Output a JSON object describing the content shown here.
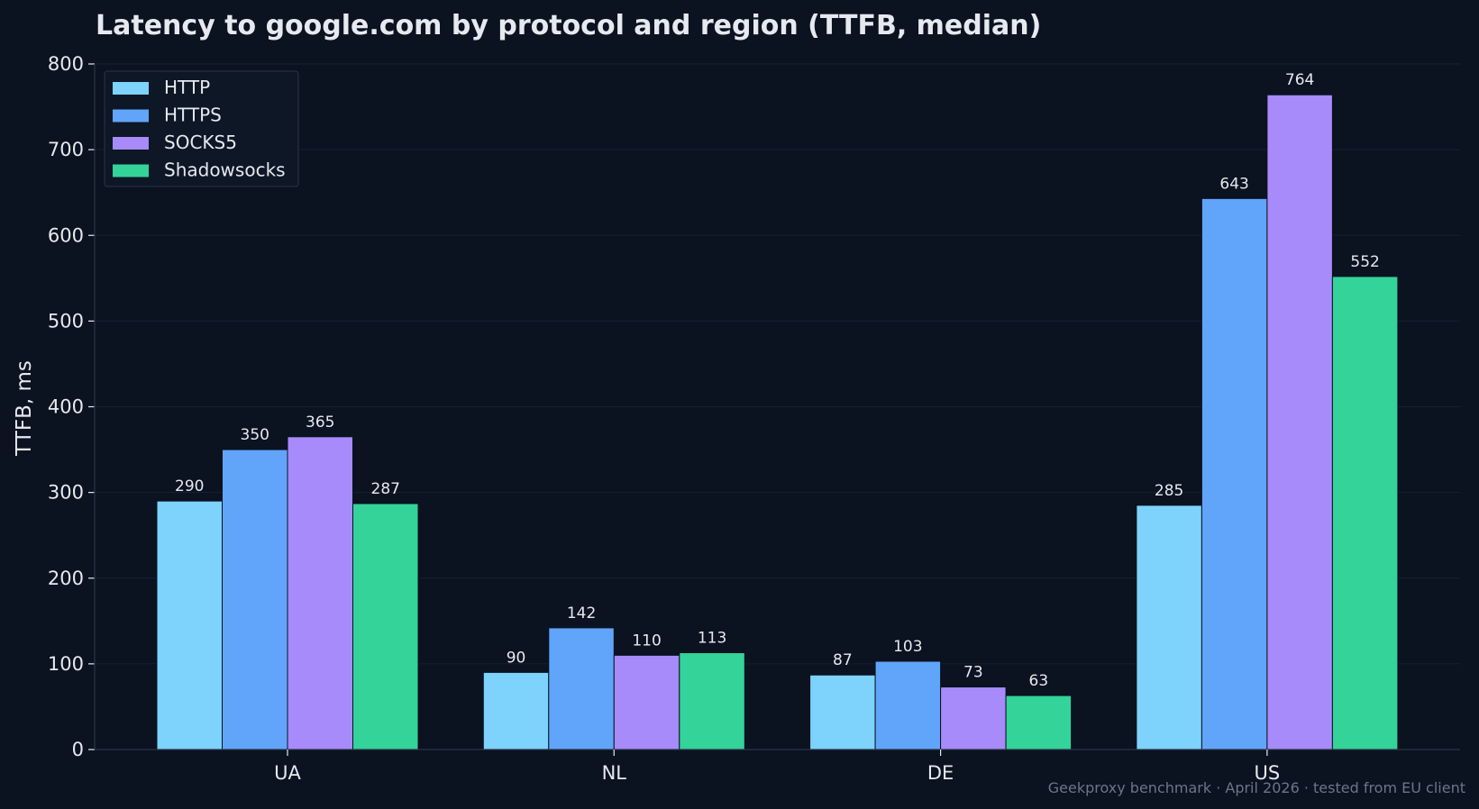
{
  "chart_data": {
    "type": "bar",
    "title": "Latency to google.com by protocol and region (TTFB, median)",
    "xlabel": "",
    "ylabel": "TTFB, ms",
    "ylim": [
      0,
      800
    ],
    "yticks": [
      0,
      100,
      200,
      300,
      400,
      500,
      600,
      700,
      800
    ],
    "categories": [
      "UA",
      "NL",
      "DE",
      "US"
    ],
    "series": [
      {
        "name": "HTTP",
        "color": "#7dd3fc",
        "values": [
          290,
          90,
          87,
          285
        ]
      },
      {
        "name": "HTTPS",
        "color": "#60a5fa",
        "values": [
          350,
          142,
          103,
          643
        ]
      },
      {
        "name": "SOCKS5",
        "color": "#a78bfa",
        "values": [
          365,
          110,
          73,
          764
        ]
      },
      {
        "name": "Shadowsocks",
        "color": "#34d399",
        "values": [
          287,
          113,
          63,
          552
        ]
      }
    ],
    "legend_position": "top-left",
    "grid": true,
    "footer": "Geekproxy benchmark · April 2026 · tested from EU client"
  },
  "colors": {
    "background": "#0b1220",
    "grid": "#162131",
    "axis": "#2a3647",
    "text": "#e6e9ef",
    "muted": "#6b7689",
    "legend_bg": "#0d1726",
    "legend_border": "#2a3647"
  }
}
